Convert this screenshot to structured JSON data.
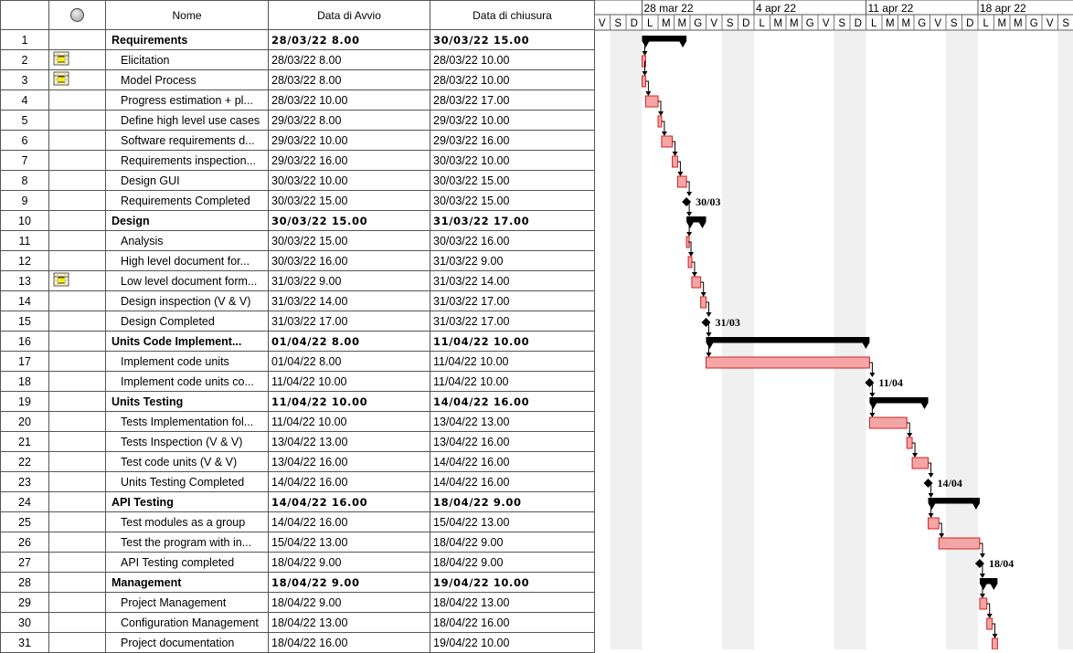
{
  "headers": {
    "id": "",
    "indicators_icon": "info-icon",
    "name": "Nome",
    "start": "Data di Avvio",
    "finish": "Data di chiusura"
  },
  "scale": {
    "weeks": [
      "28 mar 22",
      "4 apr 22",
      "11 apr 22",
      "18 apr 22"
    ],
    "days_visible": "V S D L M M G V S D L M M G V S D L M M G V S D L M M G V S D L M M G V S D"
  },
  "colors": {
    "task_bar": "#f4a6a6",
    "task_border": "#d42020",
    "summary": "#000000",
    "weekend": "#f0f0f0"
  },
  "tasks": [
    {
      "id": "1",
      "name": "Requirements",
      "start": "28/03/22 8.00",
      "finish": "30/03/22 15.00",
      "summary": true,
      "indicator": ""
    },
    {
      "id": "2",
      "name": "Elicitation",
      "start": "28/03/22 8.00",
      "finish": "28/03/22 10.00",
      "summary": false,
      "indicator": "note-icon"
    },
    {
      "id": "3",
      "name": "Model Process",
      "start": "28/03/22 8.00",
      "finish": "28/03/22 10.00",
      "summary": false,
      "indicator": "note-icon"
    },
    {
      "id": "4",
      "name": "Progress estimation + pl...",
      "start": "28/03/22 10.00",
      "finish": "28/03/22 17.00",
      "summary": false,
      "indicator": ""
    },
    {
      "id": "5",
      "name": "Define high level use cases",
      "start": "29/03/22 8.00",
      "finish": "29/03/22 10.00",
      "summary": false,
      "indicator": ""
    },
    {
      "id": "6",
      "name": "Software requirements d...",
      "start": "29/03/22 10.00",
      "finish": "29/03/22 16.00",
      "summary": false,
      "indicator": ""
    },
    {
      "id": "7",
      "name": "Requirements inspection...",
      "start": "29/03/22 16.00",
      "finish": "30/03/22 10.00",
      "summary": false,
      "indicator": ""
    },
    {
      "id": "8",
      "name": "Design GUI",
      "start": "30/03/22 10.00",
      "finish": "30/03/22 15.00",
      "summary": false,
      "indicator": ""
    },
    {
      "id": "9",
      "name": "Requirements Completed",
      "start": "30/03/22 15.00",
      "finish": "30/03/22 15.00",
      "summary": false,
      "indicator": "",
      "milestone": "30/03"
    },
    {
      "id": "10",
      "name": "Design",
      "start": "30/03/22 15.00",
      "finish": "31/03/22 17.00",
      "summary": true,
      "indicator": ""
    },
    {
      "id": "11",
      "name": "Analysis",
      "start": "30/03/22 15.00",
      "finish": "30/03/22 16.00",
      "summary": false,
      "indicator": ""
    },
    {
      "id": "12",
      "name": "High level document for...",
      "start": "30/03/22 16.00",
      "finish": "31/03/22 9.00",
      "summary": false,
      "indicator": ""
    },
    {
      "id": "13",
      "name": "Low level document form...",
      "start": "31/03/22 9.00",
      "finish": "31/03/22 14.00",
      "summary": false,
      "indicator": "note-icon"
    },
    {
      "id": "14",
      "name": "Design inspection (V & V)",
      "start": "31/03/22 14.00",
      "finish": "31/03/22 17.00",
      "summary": false,
      "indicator": ""
    },
    {
      "id": "15",
      "name": "Design Completed",
      "start": "31/03/22 17.00",
      "finish": "31/03/22 17.00",
      "summary": false,
      "indicator": "",
      "milestone": "31/03"
    },
    {
      "id": "16",
      "name": "Units Code Implement...",
      "start": "01/04/22 8.00",
      "finish": "11/04/22 10.00",
      "summary": true,
      "indicator": ""
    },
    {
      "id": "17",
      "name": "Implement code units",
      "start": "01/04/22 8.00",
      "finish": "11/04/22 10.00",
      "summary": false,
      "indicator": ""
    },
    {
      "id": "18",
      "name": "Implement code units co...",
      "start": "11/04/22 10.00",
      "finish": "11/04/22 10.00",
      "summary": false,
      "indicator": "",
      "milestone": "11/04"
    },
    {
      "id": "19",
      "name": "Units Testing",
      "start": "11/04/22 10.00",
      "finish": "14/04/22 16.00",
      "summary": true,
      "indicator": ""
    },
    {
      "id": "20",
      "name": "Tests Implementation fol...",
      "start": "11/04/22 10.00",
      "finish": "13/04/22 13.00",
      "summary": false,
      "indicator": ""
    },
    {
      "id": "21",
      "name": "Tests Inspection (V & V)",
      "start": "13/04/22 13.00",
      "finish": "13/04/22 16.00",
      "summary": false,
      "indicator": ""
    },
    {
      "id": "22",
      "name": "Test code units (V & V)",
      "start": "13/04/22 16.00",
      "finish": "14/04/22 16.00",
      "summary": false,
      "indicator": ""
    },
    {
      "id": "23",
      "name": "Units Testing Completed",
      "start": "14/04/22 16.00",
      "finish": "14/04/22 16.00",
      "summary": false,
      "indicator": "",
      "milestone": "14/04"
    },
    {
      "id": "24",
      "name": "API Testing",
      "start": "14/04/22 16.00",
      "finish": "18/04/22 9.00",
      "summary": true,
      "indicator": ""
    },
    {
      "id": "25",
      "name": "Test modules as a group",
      "start": "14/04/22 16.00",
      "finish": "15/04/22 13.00",
      "summary": false,
      "indicator": ""
    },
    {
      "id": "26",
      "name": "Test the program with in...",
      "start": "15/04/22 13.00",
      "finish": "18/04/22 9.00",
      "summary": false,
      "indicator": ""
    },
    {
      "id": "27",
      "name": "API Testing completed",
      "start": "18/04/22 9.00",
      "finish": "18/04/22 9.00",
      "summary": false,
      "indicator": "",
      "milestone": "18/04"
    },
    {
      "id": "28",
      "name": "Management",
      "start": "18/04/22 9.00",
      "finish": "19/04/22 10.00",
      "summary": true,
      "indicator": ""
    },
    {
      "id": "29",
      "name": "Project Management",
      "start": "18/04/22 9.00",
      "finish": "18/04/22 13.00",
      "summary": false,
      "indicator": ""
    },
    {
      "id": "30",
      "name": "Configuration Management",
      "start": "18/04/22 13.00",
      "finish": "18/04/22 16.00",
      "summary": false,
      "indicator": ""
    },
    {
      "id": "31",
      "name": "Project documentation",
      "start": "18/04/22 16.00",
      "finish": "19/04/22 10.00",
      "summary": false,
      "indicator": ""
    }
  ]
}
